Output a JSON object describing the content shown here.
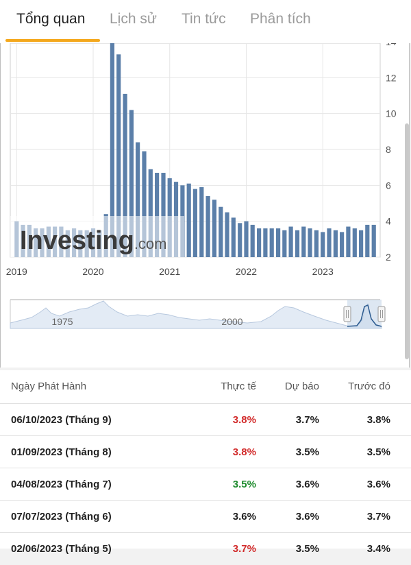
{
  "tabs": [
    {
      "label": "Tổng quan",
      "active": true
    },
    {
      "label": "Lịch sử",
      "active": false
    },
    {
      "label": "Tin tức",
      "active": false
    },
    {
      "label": "Phân tích",
      "active": false
    }
  ],
  "colors": {
    "accent": "#f4a81d",
    "bar": "#5b7fa9",
    "up": "#d22b2b",
    "down": "#1d8a2c"
  },
  "chart_data": {
    "type": "bar",
    "title": "",
    "xlabel": "",
    "ylabel": "",
    "ylim": [
      2,
      14
    ],
    "y_ticks": [
      2,
      4,
      6,
      8,
      10,
      12,
      14
    ],
    "x_ticks": [
      "2019",
      "2020",
      "2021",
      "2022",
      "2023"
    ],
    "x_tick_positions": [
      2019,
      2020,
      2021,
      2022,
      2023
    ],
    "xlim": [
      2018.917,
      2023.75
    ],
    "grid": true,
    "watermark": "Investing.com",
    "dates": [
      2019.0,
      2019.083,
      2019.167,
      2019.25,
      2019.333,
      2019.417,
      2019.5,
      2019.583,
      2019.667,
      2019.75,
      2019.833,
      2019.917,
      2020.0,
      2020.083,
      2020.167,
      2020.25,
      2020.333,
      2020.417,
      2020.5,
      2020.583,
      2020.667,
      2020.75,
      2020.833,
      2020.917,
      2021.0,
      2021.083,
      2021.167,
      2021.25,
      2021.333,
      2021.417,
      2021.5,
      2021.583,
      2021.667,
      2021.75,
      2021.833,
      2021.917,
      2022.0,
      2022.083,
      2022.167,
      2022.25,
      2022.333,
      2022.417,
      2022.5,
      2022.583,
      2022.667,
      2022.75,
      2022.833,
      2022.917,
      2023.0,
      2023.083,
      2023.167,
      2023.25,
      2023.333,
      2023.417,
      2023.5,
      2023.583,
      2023.667
    ],
    "values": [
      4.0,
      3.8,
      3.8,
      3.6,
      3.6,
      3.7,
      3.7,
      3.7,
      3.5,
      3.6,
      3.5,
      3.5,
      3.6,
      3.5,
      4.4,
      14.7,
      13.3,
      11.1,
      10.2,
      8.4,
      7.9,
      6.9,
      6.7,
      6.7,
      6.4,
      6.2,
      6.0,
      6.1,
      5.8,
      5.9,
      5.4,
      5.2,
      4.8,
      4.5,
      4.2,
      3.9,
      4.0,
      3.8,
      3.6,
      3.6,
      3.6,
      3.6,
      3.5,
      3.7,
      3.5,
      3.7,
      3.6,
      3.5,
      3.4,
      3.6,
      3.5,
      3.4,
      3.7,
      3.6,
      3.5,
      3.8,
      3.8
    ]
  },
  "navigator": {
    "labels": [
      "1975",
      "2000"
    ]
  },
  "table": {
    "headers": {
      "date": "Ngày Phát Hành",
      "actual": "Thực tế",
      "forecast": "Dự báo",
      "previous": "Trước đó"
    },
    "rows": [
      {
        "date": "06/10/2023 (Tháng 9)",
        "actual": "3.8%",
        "actual_color": "#d22b2b",
        "forecast": "3.7%",
        "previous": "3.8%"
      },
      {
        "date": "01/09/2023 (Tháng 8)",
        "actual": "3.8%",
        "actual_color": "#d22b2b",
        "forecast": "3.5%",
        "previous": "3.5%"
      },
      {
        "date": "04/08/2023 (Tháng 7)",
        "actual": "3.5%",
        "actual_color": "#1d8a2c",
        "forecast": "3.6%",
        "previous": "3.6%"
      },
      {
        "date": "07/07/2023 (Tháng 6)",
        "actual": "3.6%",
        "actual_color": "#222222",
        "forecast": "3.6%",
        "previous": "3.7%"
      },
      {
        "date": "02/06/2023 (Tháng 5)",
        "actual": "3.7%",
        "actual_color": "#d22b2b",
        "forecast": "3.5%",
        "previous": "3.4%"
      }
    ]
  }
}
